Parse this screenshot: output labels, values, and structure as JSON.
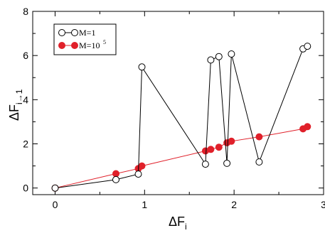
{
  "chart_data": {
    "type": "line",
    "title": "",
    "xlabel": {
      "main": "ΔF",
      "sub": "i"
    },
    "ylabel": {
      "main": "ΔF",
      "sub": "i→1"
    },
    "xlim": [
      -0.25,
      3.0
    ],
    "ylim": [
      -0.3,
      8.0
    ],
    "xticks": [
      "0",
      "1",
      "2",
      "3"
    ],
    "yticks": [
      "0",
      "2",
      "4",
      "6",
      "8"
    ],
    "grid": false,
    "legend_position": "top-left",
    "series": [
      {
        "name": "M=1",
        "legend_main": "M=1",
        "legend_sup": "",
        "color": "#000000",
        "marker": "open-circle",
        "points": [
          [
            0.0,
            0.0
          ],
          [
            0.68,
            0.38
          ],
          [
            0.93,
            0.63
          ],
          [
            0.97,
            5.48
          ],
          [
            1.68,
            1.08
          ],
          [
            1.74,
            5.8
          ],
          [
            1.83,
            5.95
          ],
          [
            1.92,
            1.12
          ],
          [
            1.97,
            6.07
          ],
          [
            2.28,
            1.18
          ],
          [
            2.77,
            6.3
          ],
          [
            2.82,
            6.42
          ]
        ]
      },
      {
        "name": "M=10^5",
        "legend_main": "M=10",
        "legend_sup": "5",
        "color": "#e0202a",
        "marker": "filled-circle",
        "points": [
          [
            0.0,
            0.0
          ],
          [
            0.68,
            0.65
          ],
          [
            0.93,
            0.88
          ],
          [
            0.97,
            1.0
          ],
          [
            1.68,
            1.68
          ],
          [
            1.74,
            1.75
          ],
          [
            1.83,
            1.85
          ],
          [
            1.92,
            2.05
          ],
          [
            1.97,
            2.12
          ],
          [
            2.28,
            2.32
          ],
          [
            2.77,
            2.68
          ],
          [
            2.82,
            2.78
          ]
        ]
      }
    ]
  }
}
